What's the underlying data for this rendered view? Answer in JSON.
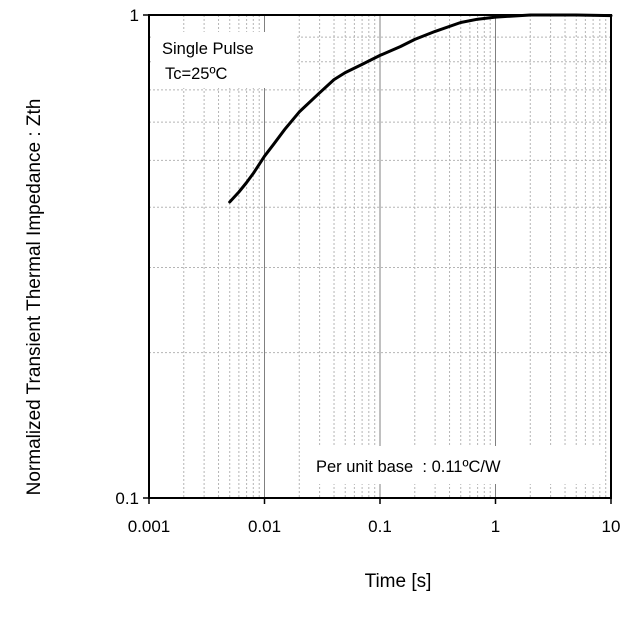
{
  "chart_data": {
    "type": "line",
    "title": "",
    "xlabel": "Time [s]",
    "ylabel": "Normalized Transient Thermal Impedance : Zth",
    "x_scale": "log",
    "y_scale": "log",
    "xlim": [
      0.001,
      10
    ],
    "ylim": [
      0.1,
      1
    ],
    "grid": true,
    "x_ticks": [
      0.001,
      0.01,
      0.1,
      1,
      10
    ],
    "x_tick_labels": [
      "0.001",
      "0.01",
      "0.1",
      "1",
      "10"
    ],
    "y_ticks": [
      0.1,
      1
    ],
    "y_tick_labels": [
      "0.1",
      "1"
    ],
    "annotations": {
      "pulse": "Single Pulse",
      "temp": "Tc=25ºC",
      "base": "Per unit base  : 0.11ºC/W"
    },
    "series": [
      {
        "x": [
          0.005,
          0.006,
          0.007,
          0.008,
          0.01,
          0.012,
          0.015,
          0.02,
          0.03,
          0.04,
          0.05,
          0.07,
          0.1,
          0.15,
          0.2,
          0.3,
          0.5,
          0.7,
          1,
          2,
          3,
          5,
          10
        ],
        "y": [
          0.41,
          0.43,
          0.45,
          0.47,
          0.51,
          0.54,
          0.58,
          0.63,
          0.69,
          0.735,
          0.76,
          0.79,
          0.825,
          0.86,
          0.89,
          0.925,
          0.965,
          0.98,
          0.99,
          1.0,
          1.0,
          1.0,
          0.997
        ],
        "color": "#000000"
      }
    ]
  }
}
